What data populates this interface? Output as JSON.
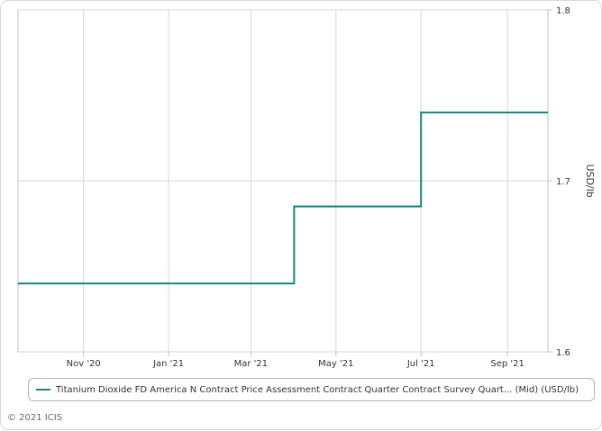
{
  "chart_data": {
    "type": "line",
    "step": true,
    "x": [
      "2020-09-15",
      "2021-04-01",
      "2021-07-01",
      "2021-09-30"
    ],
    "series": [
      {
        "name": "Titanium Dioxide FD America N Contract Price Assessment Contract Quarter Contract Survey Quart... (Mid) (USD/lb)",
        "values": [
          1.64,
          1.685,
          1.74,
          1.74
        ]
      }
    ],
    "x_ticks": [
      {
        "date": "2020-11-01",
        "label": "Nov '20"
      },
      {
        "date": "2021-01-01",
        "label": "Jan '21"
      },
      {
        "date": "2021-03-01",
        "label": "Mar '21"
      },
      {
        "date": "2021-05-01",
        "label": "May '21"
      },
      {
        "date": "2021-07-01",
        "label": "Jul '21"
      },
      {
        "date": "2021-09-01",
        "label": "Sep '21"
      }
    ],
    "y_ticks": [
      1.6,
      1.7,
      1.8
    ],
    "y_tick_labels": [
      "1.6",
      "1.7",
      "1.8"
    ],
    "ylim": [
      1.6,
      1.8
    ],
    "xlim": [
      "2020-09-15",
      "2021-09-30"
    ],
    "ylabel": "USD/lb",
    "y_axis_position": "right",
    "grid": true,
    "legend_position": "bottom",
    "color": "#168a7e"
  },
  "footer": {
    "copyright": "© 2021 ICIS"
  }
}
